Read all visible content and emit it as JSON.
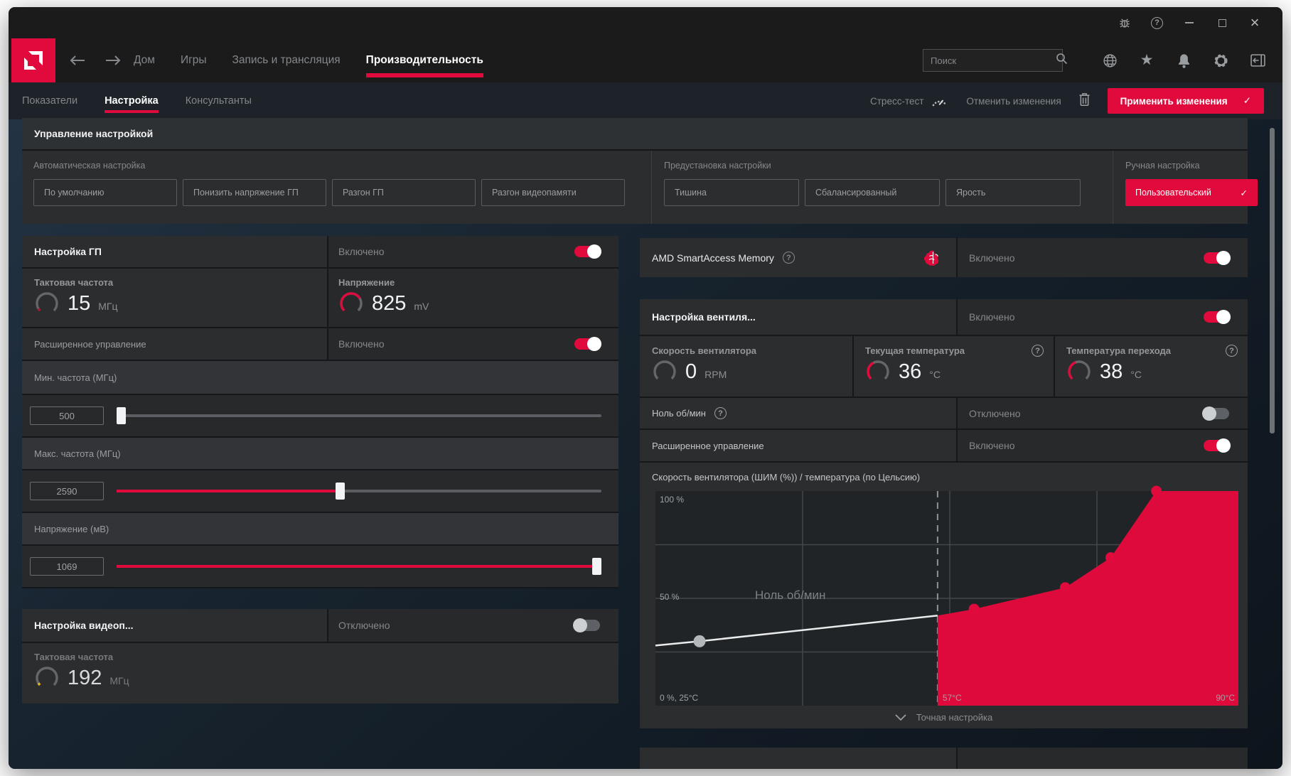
{
  "colors": {
    "accent": "#e00a3c",
    "accent_dark": "#b5112f",
    "yellow": "#e2b41e",
    "toggle_off": "#5d6165"
  },
  "nav": {
    "tabs": [
      "Дом",
      "Игры",
      "Запись и трансляция",
      "Производительность"
    ],
    "active_tab": "Производительность",
    "search_placeholder": "Поиск"
  },
  "subnav": {
    "tabs": [
      "Показатели",
      "Настройка",
      "Консультанты"
    ],
    "active_tab": "Настройка",
    "stress_test_label": "Стресс-тест",
    "cancel_label": "Отменить изменения",
    "apply_label": "Применить изменения",
    "apply_check": "✓"
  },
  "tuning_control": {
    "title": "Управление настройкой",
    "auto_label": "Автоматическая настройка",
    "auto_buttons": [
      "По умолчанию",
      "Понизить напряжение ГП",
      "Разгон ГП",
      "Разгон видеопамяти"
    ],
    "preset_label": "Предустановка настройки",
    "preset_buttons": [
      "Тишина",
      "Сбалансированный",
      "Ярость"
    ],
    "manual_label": "Ручная настройка",
    "manual_button": "Пользовательский",
    "manual_check": "✓"
  },
  "gpu_tuning": {
    "title": "Настройка ГП",
    "status": "Включено",
    "clock_label": "Тактовая частота",
    "clock_value": "15",
    "clock_unit": "МГц",
    "voltage_label": "Напряжение",
    "voltage_value": "825",
    "voltage_unit": "mV",
    "advanced_label": "Расширенное управление",
    "advanced_status": "Включено",
    "min_freq_label": "Мин. частота (МГц)",
    "min_freq_value": "500",
    "max_freq_label": "Макс. частота (МГц)",
    "max_freq_value": "2590",
    "voltage_mv_label": "Напряжение (мВ)",
    "voltage_mv_value": "1069"
  },
  "sliders": {
    "min_freq": {
      "frac": 0.0
    },
    "max_freq": {
      "frac": 0.46
    },
    "voltage": {
      "frac": 1.0
    }
  },
  "gauges": {
    "gpu_clock": {
      "frac": 0.05,
      "color": "#b5112f"
    },
    "gpu_voltage": {
      "frac": 0.72,
      "color": "#e00a3c"
    },
    "vram_clock": {
      "frac": 0.05,
      "color": "#e2b41e"
    },
    "fan_speed": {
      "frac": 0.0,
      "color": "#e00a3c"
    },
    "current_temp": {
      "frac": 0.4,
      "color": "#e00a3c"
    },
    "junction_temp": {
      "frac": 0.42,
      "color": "#e00a3c"
    }
  },
  "vram_tuning": {
    "title": "Настройка видеоп...",
    "status": "Отключено",
    "clock_label": "Тактовая частота",
    "clock_value": "192",
    "clock_unit": "МГц"
  },
  "smart_access": {
    "title": "AMD SmartAccess Memory",
    "status": "Включено"
  },
  "fan_tuning": {
    "title": "Настройка вентиля...",
    "status": "Включено",
    "fan_speed_label": "Скорость вентилятора",
    "fan_speed_value": "0",
    "fan_speed_unit": "RPM",
    "current_temp_label": "Текущая температура",
    "current_temp_value": "36",
    "current_temp_unit": "°C",
    "junction_temp_label": "Температура перехода",
    "junction_temp_value": "38",
    "junction_temp_unit": "°C",
    "zero_rpm_label": "Ноль об/мин",
    "zero_rpm_status": "Отключено",
    "advanced_label": "Расширенное управление",
    "advanced_status": "Включено",
    "fine_tuning_label": "Точная настройка"
  },
  "chart_data": {
    "type": "area",
    "title": "Скорость вентилятора (ШИМ (%)) / температура (по Цельсию)",
    "xlabel": "температура (по Цельсию)",
    "ylabel": "Скорость вентилятора (ШИМ (%))",
    "x_range": [
      25,
      90
    ],
    "y_range": [
      0,
      100
    ],
    "x_axis_anchors": [
      [
        25,
        0
      ],
      [
        57,
        0.484
      ],
      [
        90,
        1
      ]
    ],
    "y_tick_labels": [
      "100 %",
      "50 %"
    ],
    "corner_label": "0 %, 25°C",
    "threshold_label": "57°C",
    "x_max_label": "90°C",
    "zero_rpm_label": "Ноль об/мин",
    "zero_rpm_threshold_c": 57,
    "zero_rpm_line": [
      {
        "t": 25,
        "pwm": 28
      },
      {
        "t": 30,
        "pwm": 30
      },
      {
        "t": 57,
        "pwm": 42
      }
    ],
    "zero_rpm_point": {
      "t": 30,
      "pwm": 30
    },
    "fan_curve": [
      {
        "t": 57,
        "pwm": 42
      },
      {
        "t": 61,
        "pwm": 45
      },
      {
        "t": 71,
        "pwm": 55
      },
      {
        "t": 76,
        "pwm": 69
      },
      {
        "t": 81,
        "pwm": 100
      },
      {
        "t": 90,
        "pwm": 100
      }
    ],
    "fan_points": [
      {
        "t": 61,
        "pwm": 45
      },
      {
        "t": 71,
        "pwm": 55
      },
      {
        "t": 76,
        "pwm": 69
      },
      {
        "t": 81,
        "pwm": 100
      }
    ],
    "grid": {
      "v_fracs": [
        0.2524,
        0.5049,
        0.7573
      ],
      "h_pcts": [
        25,
        50,
        75
      ]
    },
    "legend": "none",
    "colors": {
      "area": "#df0a3c",
      "line": "#e9ebec",
      "dot_gray": "#b4b7ba",
      "dot_red": "#e00a3c",
      "grid": "#43474a",
      "dashed": "#8f9396"
    }
  }
}
